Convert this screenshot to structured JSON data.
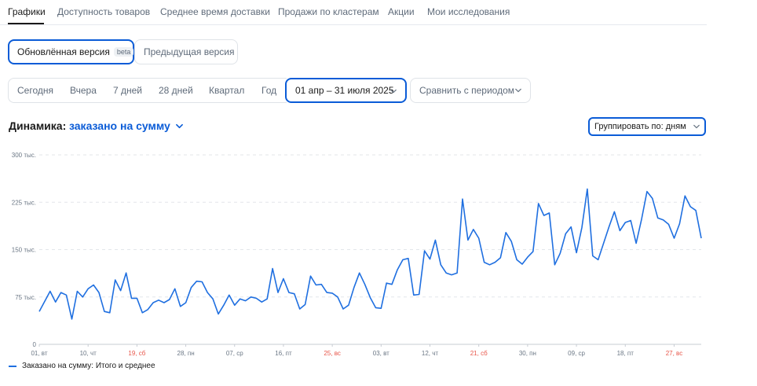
{
  "tabs": [
    {
      "label": "Графики",
      "active": true
    },
    {
      "label": "Доступность товаров"
    },
    {
      "label": "Среднее время доставки"
    },
    {
      "label": "Продажи по кластерам"
    },
    {
      "label": "Акции"
    },
    {
      "label": "Мои исследования"
    }
  ],
  "version": {
    "updated_label": "Обновлённая версия",
    "beta_badge": "beta",
    "previous_label": "Предыдущая версия"
  },
  "period": {
    "presets": [
      "Сегодня",
      "Вчера",
      "7 дней",
      "28 дней",
      "Квартал",
      "Год"
    ],
    "range_label": "01 апр – 31 июля 2025",
    "compare_label": "Сравнить с периодом"
  },
  "dynamics": {
    "label": "Динамика:",
    "metric": "заказано на сумму",
    "group_by": "Группировать по: дням"
  },
  "colors": {
    "accent": "#0b5cd7",
    "line": "#1f6fe0",
    "weekend_tick": "#e8564a"
  },
  "chart_data": {
    "type": "line",
    "y_ticks": [
      "0",
      "75 тыс.",
      "150 тыс.",
      "225 тыс.",
      "300 тыс."
    ],
    "y_tick_values": [
      0,
      75000,
      150000,
      225000,
      300000
    ],
    "ylim": [
      0,
      300000
    ],
    "x_ticks": [
      {
        "label": "01, вт",
        "index": 0
      },
      {
        "label": "10, чт",
        "index": 9
      },
      {
        "label": "19, сб",
        "index": 18,
        "weekend": true
      },
      {
        "label": "28, пн",
        "index": 27
      },
      {
        "label": "07, ср",
        "index": 36
      },
      {
        "label": "16, пт",
        "index": 45
      },
      {
        "label": "25, вс",
        "index": 54,
        "weekend": true
      },
      {
        "label": "03, вт",
        "index": 63
      },
      {
        "label": "12, чт",
        "index": 72
      },
      {
        "label": "21, сб",
        "index": 81,
        "weekend": true
      },
      {
        "label": "30, пн",
        "index": 90
      },
      {
        "label": "09, ср",
        "index": 99
      },
      {
        "label": "18, пт",
        "index": 108
      },
      {
        "label": "27, вс",
        "index": 117,
        "weekend": true
      }
    ],
    "grid": true,
    "series": [
      {
        "name": "Заказано на сумму: Итого и среднее",
        "values": [
          52000,
          68000,
          84000,
          67000,
          82000,
          78000,
          40000,
          84000,
          75000,
          88000,
          94000,
          82000,
          52000,
          50000,
          102000,
          85000,
          113000,
          73000,
          73000,
          50000,
          55000,
          66000,
          70000,
          66000,
          71000,
          88000,
          60000,
          66000,
          90000,
          100000,
          99000,
          82000,
          72000,
          48000,
          62000,
          78000,
          62000,
          72000,
          69000,
          75000,
          73000,
          67000,
          72000,
          120000,
          82000,
          104000,
          82000,
          80000,
          56000,
          63000,
          108000,
          94000,
          95000,
          82000,
          81000,
          75000,
          56000,
          62000,
          90000,
          113000,
          95000,
          74000,
          58000,
          57000,
          97000,
          95000,
          118000,
          134000,
          136000,
          78000,
          79000,
          148000,
          135000,
          165000,
          126000,
          113000,
          110000,
          113000,
          230000,
          165000,
          182000,
          168000,
          130000,
          126000,
          130000,
          137000,
          177000,
          163000,
          134000,
          127000,
          138000,
          147000,
          223000,
          204000,
          208000,
          126000,
          144000,
          175000,
          186000,
          145000,
          185000,
          246000,
          140000,
          134000,
          160000,
          186000,
          210000,
          180000,
          193000,
          196000,
          160000,
          198000,
          242000,
          231000,
          200000,
          197000,
          190000,
          168000,
          191000,
          235000,
          218000,
          212000,
          168000
        ]
      }
    ]
  },
  "legend": {
    "label": "Заказано на сумму: Итого и среднее"
  }
}
